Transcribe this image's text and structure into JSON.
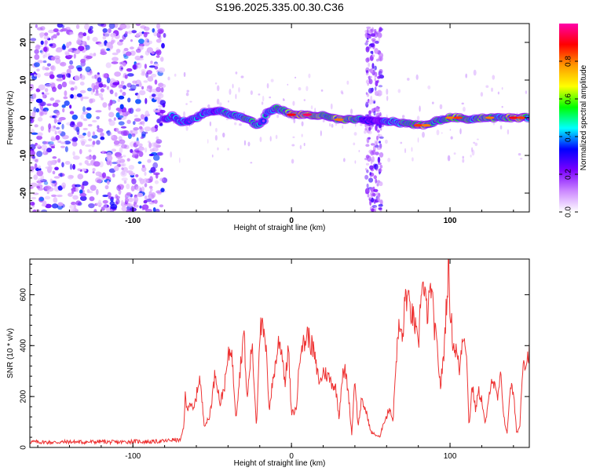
{
  "title": "S196.2025.335.00.30.C36",
  "chart_data": [
    {
      "type": "heatmap",
      "name": "spectrogram",
      "xlabel": "Height of straight line (km)",
      "ylabel": "Frequency (Hz)",
      "xlim": [
        -165,
        150
      ],
      "ylim": [
        -25,
        25
      ],
      "xticks": [
        -100,
        0,
        100
      ],
      "xtick_labels": [
        "-100",
        "0",
        "100"
      ],
      "yticks": [
        -20,
        -10,
        0,
        10,
        20
      ],
      "ytick_labels": [
        "-20",
        "-10",
        "0",
        "10",
        "20"
      ],
      "colorbar": {
        "label": "Normalized spectral amplitude",
        "range": [
          0,
          1
        ],
        "ticks": [
          0.0,
          0.2,
          0.4,
          0.6,
          0.8
        ],
        "tick_labels": [
          "0.0",
          "0.2",
          "0.4",
          "0.6",
          "0.8"
        ],
        "colormap": [
          "#ffffff",
          "#cc88ff",
          "#7b00ff",
          "#0000ff",
          "#00ffff",
          "#00ff00",
          "#ffff00",
          "#ff9900",
          "#ff0000",
          "#ff00aa"
        ]
      },
      "noise_region_x": [
        -165,
        -80
      ],
      "noise_band_x": [
        47,
        57
      ],
      "ridge": {
        "x": [
          -80,
          -75,
          -70,
          -65,
          -60,
          -55,
          -50,
          -45,
          -40,
          -35,
          -30,
          -25,
          -22,
          -18,
          -15,
          -10,
          -5,
          0,
          10,
          20,
          30,
          40,
          45,
          50,
          55,
          60,
          65,
          70,
          75,
          80,
          85,
          90,
          95,
          100,
          105,
          110,
          115,
          120,
          125,
          130,
          135,
          140,
          145,
          150
        ],
        "y": [
          -0.5,
          0.5,
          -1,
          -1,
          0,
          1.5,
          1.5,
          2.0,
          1.0,
          0.5,
          0,
          -1,
          -2,
          -1,
          1.5,
          2.5,
          2,
          0.8,
          0.8,
          0.5,
          -0.5,
          -0.5,
          -0.5,
          -0.8,
          -1,
          -1,
          -1,
          -1.5,
          -1.5,
          -2,
          -2,
          -1,
          -0.5,
          0,
          0,
          -0.3,
          -0.3,
          0,
          0,
          0,
          0,
          0,
          0,
          0
        ],
        "amplitude": [
          0.35,
          0.55,
          0.5,
          0.45,
          0.5,
          0.5,
          0.45,
          0.45,
          0.55,
          0.5,
          0.65,
          0.7,
          0.55,
          0.5,
          0.6,
          0.65,
          0.55,
          0.9,
          0.95,
          0.75,
          0.8,
          0.75,
          0.5,
          0.3,
          0.3,
          0.5,
          0.6,
          0.7,
          0.7,
          0.85,
          0.8,
          0.75,
          0.6,
          0.8,
          0.85,
          0.75,
          0.7,
          0.7,
          0.8,
          0.65,
          0.75,
          0.9,
          0.85,
          0.6
        ]
      }
    },
    {
      "type": "line",
      "name": "snr",
      "xlabel": "Height of straight line (km)",
      "ylabel": "SNR (10 * v/v)",
      "xlim": [
        -165,
        150
      ],
      "ylim": [
        0,
        740
      ],
      "xticks": [
        -100,
        0,
        100
      ],
      "xtick_labels": [
        "-100",
        "0",
        "100"
      ],
      "yticks": [
        0,
        200,
        400,
        600
      ],
      "ytick_labels": [
        "0",
        "200",
        "400",
        "600"
      ],
      "series": [
        {
          "name": "SNR",
          "color": "#ee3333",
          "x": [
            -165,
            -150,
            -140,
            -130,
            -120,
            -110,
            -100,
            -90,
            -80,
            -75,
            -70,
            -68,
            -67,
            -66,
            -64,
            -62,
            -60,
            -58,
            -55,
            -52,
            -50,
            -48,
            -45,
            -42,
            -40,
            -38,
            -35,
            -32,
            -30,
            -28,
            -25,
            -22,
            -20,
            -18,
            -16,
            -14,
            -12,
            -10,
            -8,
            -6,
            -4,
            -2,
            0,
            3,
            6,
            8,
            10,
            12,
            14,
            16,
            18,
            20,
            23,
            25,
            28,
            30,
            32,
            34,
            36,
            38,
            40,
            42,
            44,
            46,
            48,
            50,
            53,
            56,
            58,
            60,
            62,
            64,
            66,
            68,
            70,
            72,
            74,
            76,
            78,
            80,
            82,
            84,
            86,
            88,
            90,
            92,
            94,
            96,
            98,
            99,
            100,
            102,
            104,
            106,
            108,
            110,
            112,
            114,
            116,
            118,
            120,
            122,
            124,
            126,
            128,
            130,
            132,
            134,
            136,
            138,
            140,
            142,
            144,
            146,
            148,
            150
          ],
          "y": [
            22,
            20,
            22,
            21,
            23,
            20,
            24,
            22,
            25,
            30,
            28,
            80,
            200,
            150,
            180,
            140,
            200,
            280,
            90,
            110,
            200,
            300,
            170,
            250,
            350,
            400,
            120,
            330,
            460,
            180,
            410,
            80,
            470,
            460,
            380,
            150,
            250,
            330,
            420,
            380,
            250,
            400,
            130,
            150,
            420,
            400,
            450,
            410,
            380,
            300,
            250,
            300,
            280,
            260,
            230,
            120,
            280,
            300,
            210,
            50,
            280,
            80,
            180,
            160,
            120,
            60,
            50,
            40,
            100,
            120,
            160,
            100,
            350,
            480,
            420,
            610,
            560,
            520,
            480,
            380,
            660,
            590,
            520,
            640,
            480,
            380,
            240,
            360,
            600,
            700,
            560,
            400,
            380,
            300,
            450,
            420,
            80,
            250,
            150,
            220,
            190,
            90,
            160,
            280,
            240,
            190,
            280,
            120,
            50,
            250,
            210,
            60,
            80,
            350,
            330,
            380
          ]
        }
      ]
    }
  ]
}
